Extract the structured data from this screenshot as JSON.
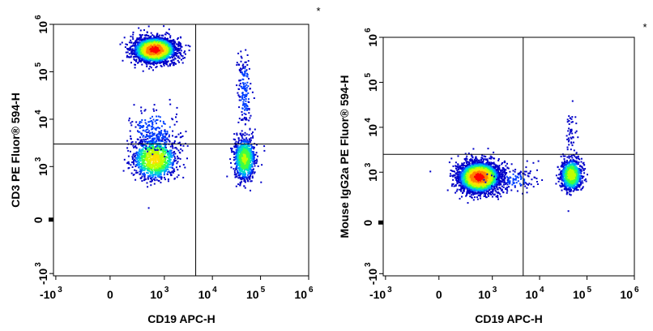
{
  "chart_data": [
    {
      "type": "scatter",
      "panel": "left",
      "xlabel": "CD19 APC-H",
      "ylabel": "CD3 PE Fluor® 594-H",
      "scale": "biexponential",
      "x_ticks": [
        {
          "base": "-10",
          "exp": "3",
          "value": -1000
        },
        {
          "base": "0",
          "exp": "",
          "value": 0
        },
        {
          "base": "10",
          "exp": "3",
          "value": 1000
        },
        {
          "base": "10",
          "exp": "4",
          "value": 10000
        },
        {
          "base": "10",
          "exp": "5",
          "value": 100000
        },
        {
          "base": "10",
          "exp": "6",
          "value": 1000000
        }
      ],
      "y_ticks": [
        {
          "base": "-10",
          "exp": "3",
          "value": -1000
        },
        {
          "base": "0",
          "exp": "",
          "value": 0
        },
        {
          "base": "10",
          "exp": "3",
          "value": 1000
        },
        {
          "base": "10",
          "exp": "4",
          "value": 10000
        },
        {
          "base": "10",
          "exp": "5",
          "value": 100000
        },
        {
          "base": "10",
          "exp": "6",
          "value": 1000000
        }
      ],
      "quadrant_gate": {
        "x": 4500,
        "y": 3000
      },
      "populations": [
        {
          "x": 600,
          "y": 300000,
          "x_spread": 0.9,
          "y_spread": 0.55,
          "count": 2600
        },
        {
          "x": 600,
          "y": 1500,
          "x_spread": 0.9,
          "y_spread": 0.9,
          "count": 1100
        },
        {
          "x": 45000,
          "y": 1500,
          "x_spread": 0.45,
          "y_spread": 0.9,
          "count": 900
        },
        {
          "x": 45000,
          "y": 40000,
          "x_spread": 0.3,
          "y_spread": 1.6,
          "count": 160
        },
        {
          "x": 600,
          "y": 6000,
          "x_spread": 1.0,
          "y_spread": 1.0,
          "count": 220
        }
      ],
      "density_colors": [
        "#0000c8",
        "#0040ff",
        "#00a0ff",
        "#00e0c0",
        "#40ff40",
        "#c0ff00",
        "#ffe000",
        "#ff8000",
        "#ff0000"
      ],
      "corner_mark": "*"
    },
    {
      "type": "scatter",
      "panel": "right",
      "xlabel": "CD19 APC-H",
      "ylabel": "Mouse IgG2a PE Fluor® 594-H",
      "scale": "biexponential",
      "x_ticks": [
        {
          "base": "-10",
          "exp": "3",
          "value": -1000
        },
        {
          "base": "0",
          "exp": "",
          "value": 0
        },
        {
          "base": "10",
          "exp": "3",
          "value": 1000
        },
        {
          "base": "10",
          "exp": "4",
          "value": 10000
        },
        {
          "base": "10",
          "exp": "5",
          "value": 100000
        },
        {
          "base": "10",
          "exp": "6",
          "value": 1000000
        }
      ],
      "y_ticks": [
        {
          "base": "-10",
          "exp": "3",
          "value": -1000
        },
        {
          "base": "0",
          "exp": "",
          "value": 0
        },
        {
          "base": "10",
          "exp": "3",
          "value": 1000
        },
        {
          "base": "10",
          "exp": "4",
          "value": 10000
        },
        {
          "base": "10",
          "exp": "5",
          "value": 100000
        },
        {
          "base": "10",
          "exp": "6",
          "value": 1000000
        }
      ],
      "quadrant_gate": {
        "x": 4500,
        "y": 2500
      },
      "populations": [
        {
          "x": 500,
          "y": 800,
          "x_spread": 0.9,
          "y_spread": 0.7,
          "count": 3200
        },
        {
          "x": 45000,
          "y": 900,
          "x_spread": 0.45,
          "y_spread": 0.7,
          "count": 1000
        },
        {
          "x": 45000,
          "y": 8000,
          "x_spread": 0.25,
          "y_spread": 1.2,
          "count": 45
        },
        {
          "x": 3000,
          "y": 700,
          "x_spread": 1.0,
          "y_spread": 0.6,
          "count": 120
        }
      ],
      "density_colors": [
        "#0000c8",
        "#0040ff",
        "#00a0ff",
        "#00e0c0",
        "#40ff40",
        "#c0ff00",
        "#ffe000",
        "#ff8000",
        "#ff0000"
      ],
      "corner_mark": "*"
    }
  ]
}
